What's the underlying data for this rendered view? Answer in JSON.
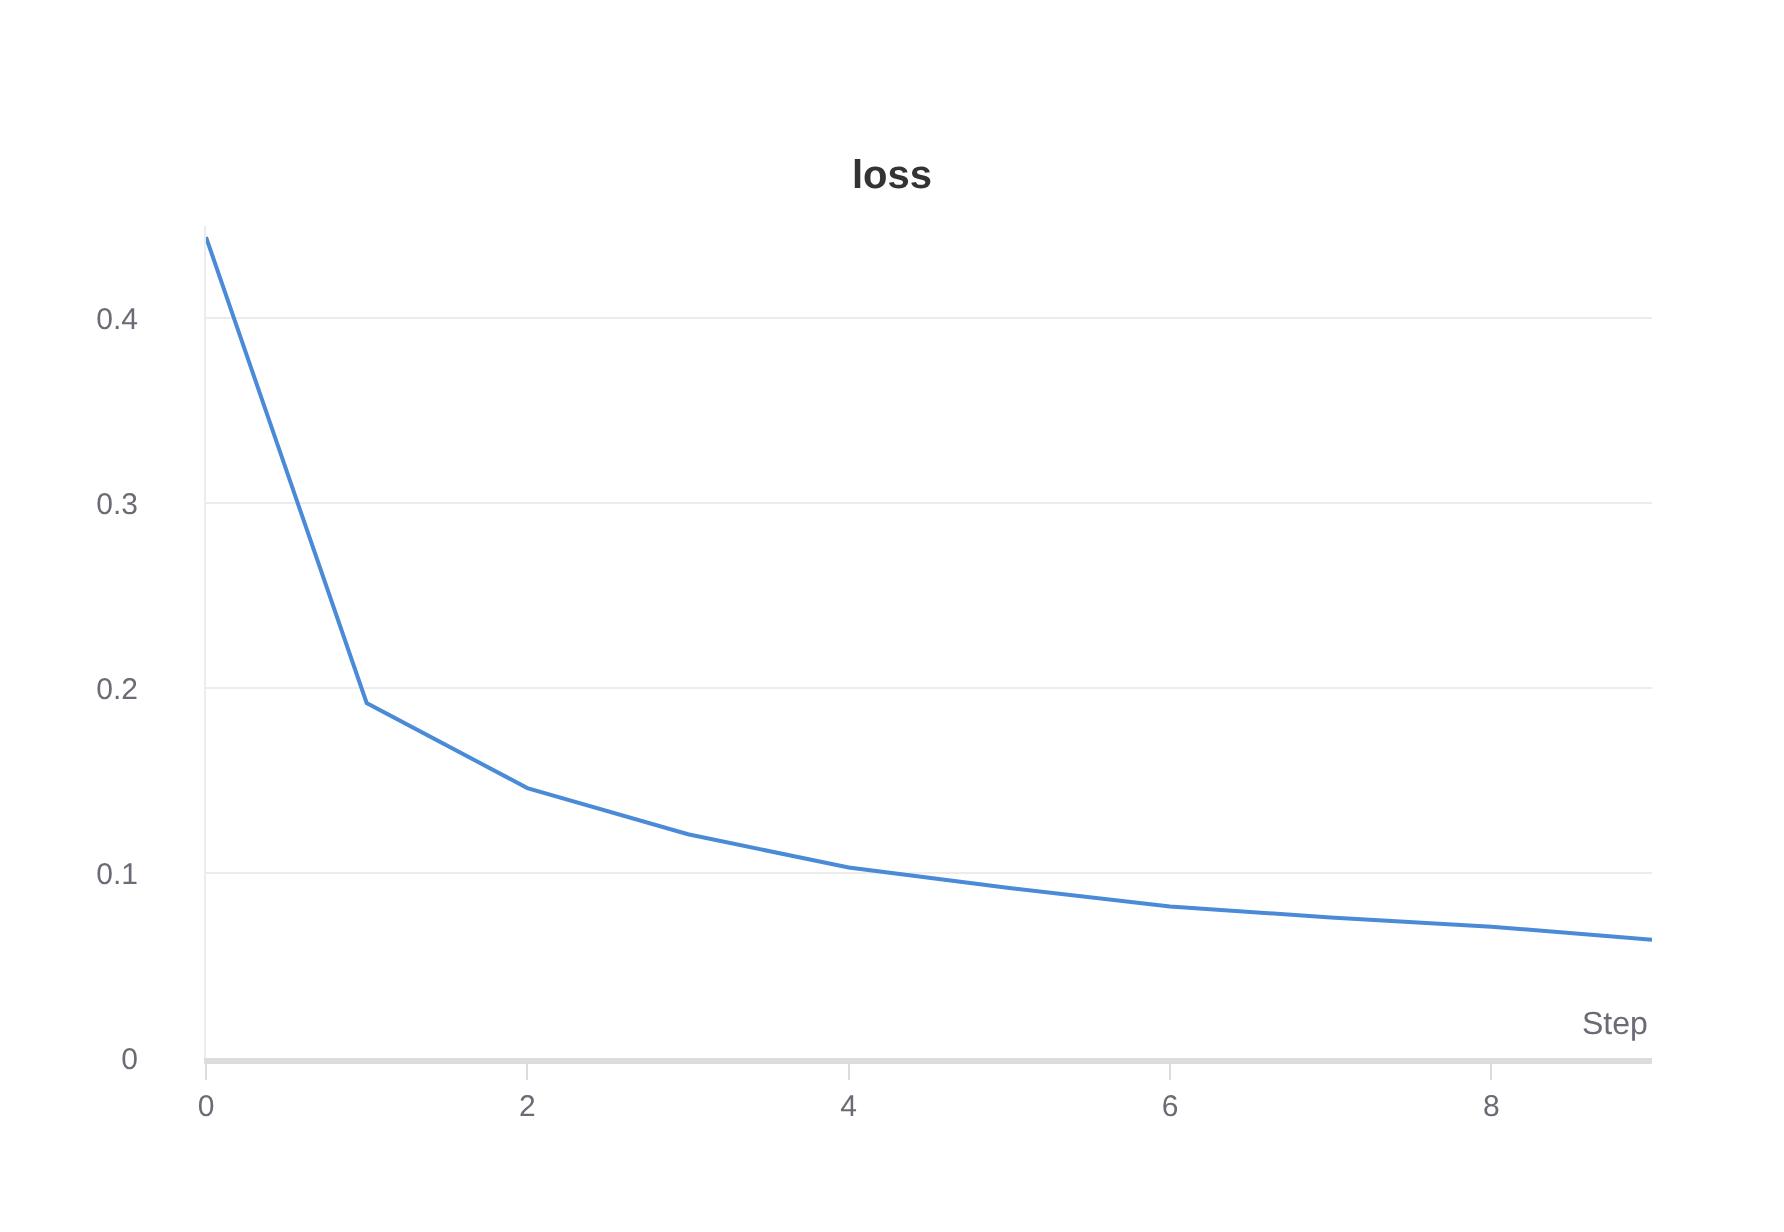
{
  "chart_data": {
    "type": "line",
    "title": "loss",
    "xlabel": "Step",
    "x": [
      0,
      1,
      2,
      3,
      4,
      5,
      6,
      7,
      8,
      9
    ],
    "series": [
      {
        "color": "#4a8ad6",
        "values": [
          0.444,
          0.192,
          0.146,
          0.121,
          0.103,
          0.092,
          0.082,
          0.076,
          0.071,
          0.064
        ]
      }
    ],
    "xlim": [
      0,
      9
    ],
    "xticks": [
      0,
      2,
      4,
      6,
      8
    ],
    "ylim": [
      0,
      0.45
    ],
    "yticks": [
      0,
      0.1,
      0.2,
      0.3,
      0.4
    ],
    "grid": "y",
    "marker": "none",
    "line_style": "solid"
  }
}
